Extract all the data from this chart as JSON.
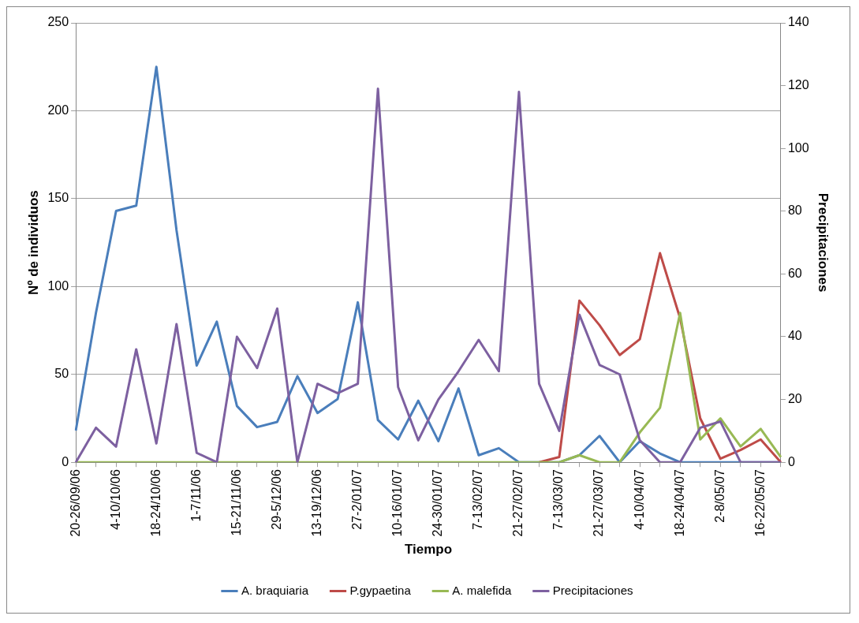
{
  "chart_data": {
    "type": "line",
    "xlabel": "Tiempo",
    "ylabel": "Nº de individuos",
    "y2label": "Precipitaciones",
    "categories": [
      "20-26/09/06",
      null,
      "4-10/10/06",
      null,
      "18-24/10/06",
      null,
      "1-7/11/06",
      null,
      "15-21/11/06",
      null,
      "29-5/12/06",
      null,
      "13-19/12/06",
      null,
      "27-2/01/07",
      null,
      "10-16/01/07",
      null,
      "24-30/01/07",
      null,
      "7-13/02/07",
      null,
      "21-27/02/07",
      null,
      "7-13/03/07",
      null,
      "21-27/03/07",
      null,
      "4-10/04/07",
      null,
      "18-24/04/07",
      null,
      "2-8/05/07",
      null,
      "16-22/05/07",
      null
    ],
    "series": [
      {
        "name": "A. braquiaria",
        "color": "#4a7ebb",
        "values": [
          18,
          85,
          143,
          146,
          225,
          132,
          55,
          80,
          32,
          20,
          23,
          49,
          28,
          36,
          91,
          24,
          13,
          35,
          12,
          42,
          4,
          8,
          0,
          0,
          0,
          4,
          15,
          0,
          12,
          5,
          0,
          0,
          0,
          0,
          0,
          0
        ]
      },
      {
        "name": "P.gypaetina",
        "color": "#be4b48",
        "values": [
          null,
          null,
          null,
          null,
          null,
          null,
          null,
          null,
          null,
          null,
          null,
          null,
          null,
          null,
          null,
          null,
          null,
          null,
          null,
          null,
          null,
          null,
          null,
          0,
          3,
          92,
          78,
          61,
          70,
          119,
          82,
          25,
          2,
          7,
          13,
          0
        ]
      },
      {
        "name": "A. malefida",
        "color": "#98b954",
        "values": [
          0,
          0,
          0,
          0,
          0,
          0,
          0,
          0,
          0,
          0,
          0,
          0,
          0,
          0,
          0,
          0,
          0,
          0,
          0,
          0,
          0,
          0,
          0,
          0,
          0,
          4,
          0,
          0,
          17,
          31,
          85,
          13,
          25,
          9,
          19,
          3
        ]
      },
      {
        "name": "Precipitaciones",
        "color": "#7d60a0",
        "axis": "y2",
        "values": [
          0,
          11,
          5,
          36,
          6,
          44,
          3,
          0,
          40,
          30,
          49,
          0,
          25,
          22,
          25,
          119,
          24,
          7,
          20,
          29,
          39,
          29,
          118,
          25,
          10,
          47,
          31,
          28,
          7,
          0,
          0,
          11,
          13,
          0,
          0,
          0
        ]
      }
    ],
    "ylim": [
      0,
      250
    ],
    "yticks": [
      0,
      50,
      100,
      150,
      200,
      250
    ],
    "y2lim": [
      0,
      140
    ],
    "y2ticks": [
      0,
      20,
      40,
      60,
      80,
      100,
      120,
      140
    ],
    "grid": "y",
    "legend": "bottom",
    "marker": "none",
    "line_style": "solid"
  }
}
